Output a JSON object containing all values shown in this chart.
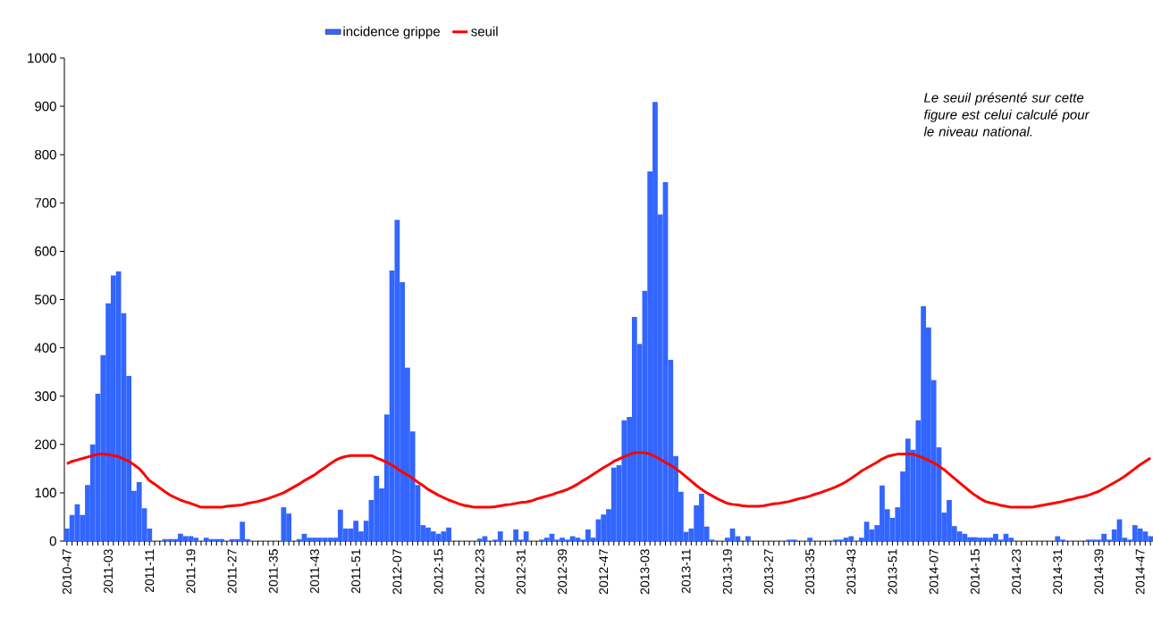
{
  "chart_data": {
    "type": "bar",
    "categories": [
      "2010-47",
      null,
      null,
      null,
      null,
      null,
      null,
      null,
      "2011-03",
      null,
      null,
      null,
      null,
      null,
      null,
      null,
      "2011-11",
      null,
      null,
      null,
      null,
      null,
      null,
      null,
      "2011-19",
      null,
      null,
      null,
      null,
      null,
      null,
      null,
      "2011-27",
      null,
      null,
      null,
      null,
      null,
      null,
      null,
      "2011-35",
      null,
      null,
      null,
      null,
      null,
      null,
      null,
      "2011-43",
      null,
      null,
      null,
      null,
      null,
      null,
      null,
      "2011-51",
      null,
      null,
      null,
      null,
      null,
      null,
      null,
      "2012-07",
      null,
      null,
      null,
      null,
      null,
      null,
      null,
      "2012-15",
      null,
      null,
      null,
      null,
      null,
      null,
      null,
      "2012-23",
      null,
      null,
      null,
      null,
      null,
      null,
      null,
      "2012-31",
      null,
      null,
      null,
      null,
      null,
      null,
      null,
      "2012-39",
      null,
      null,
      null,
      null,
      null,
      null,
      null,
      "2012-47",
      null,
      null,
      null,
      null,
      null,
      null,
      null,
      "2013-03",
      null,
      null,
      null,
      null,
      null,
      null,
      null,
      "2013-11",
      null,
      null,
      null,
      null,
      null,
      null,
      null,
      "2013-19",
      null,
      null,
      null,
      null,
      null,
      null,
      null,
      "2013-27",
      null,
      null,
      null,
      null,
      null,
      null,
      null,
      "2013-35",
      null,
      null,
      null,
      null,
      null,
      null,
      null,
      "2013-43",
      null,
      null,
      null,
      null,
      null,
      null,
      null,
      "2013-51",
      null,
      null,
      null,
      null,
      null,
      null,
      null,
      "2014-07",
      null,
      null,
      null,
      null,
      null,
      null,
      null,
      "2014-15",
      null,
      null,
      null,
      null,
      null,
      null,
      null,
      "2014-23",
      null,
      null,
      null,
      null,
      null,
      null,
      null,
      "2014-31",
      null,
      null,
      null,
      null,
      null,
      null,
      null,
      "2014-39",
      null,
      null,
      null,
      null,
      null,
      null,
      null,
      "2014-47",
      null,
      null
    ],
    "series": [
      {
        "name": "incidence grippe",
        "color": "#3366ff",
        "values": [
          26,
          54,
          76,
          54,
          116,
          200,
          305,
          385,
          492,
          550,
          558,
          472,
          342,
          104,
          122,
          68,
          26,
          0,
          0,
          4,
          4,
          4,
          15,
          10,
          10,
          7,
          0,
          7,
          4,
          4,
          4,
          0,
          4,
          4,
          40,
          4,
          0,
          0,
          0,
          0,
          0,
          0,
          70,
          57,
          0,
          4,
          15,
          7,
          7,
          7,
          7,
          7,
          7,
          65,
          26,
          26,
          42,
          20,
          42,
          85,
          135,
          109,
          262,
          560,
          665,
          536,
          359,
          227,
          116,
          33,
          28,
          20,
          15,
          20,
          28,
          0,
          0,
          0,
          0,
          0,
          5,
          10,
          0,
          3,
          20,
          0,
          0,
          24,
          3,
          20,
          0,
          0,
          3,
          7,
          15,
          3,
          7,
          3,
          10,
          7,
          3,
          24,
          7,
          45,
          55,
          66,
          152,
          157,
          250,
          257,
          464,
          408,
          518,
          765,
          909,
          676,
          743,
          375,
          176,
          102,
          19,
          26,
          74,
          98,
          30,
          3,
          0,
          0,
          7,
          26,
          10,
          0,
          10,
          0,
          0,
          0,
          0,
          0,
          0,
          0,
          3,
          3,
          0,
          0,
          7,
          0,
          0,
          0,
          0,
          3,
          3,
          7,
          10,
          0,
          7,
          40,
          24,
          33,
          115,
          66,
          48,
          70,
          144,
          212,
          189,
          250,
          486,
          442,
          333,
          194,
          59,
          85,
          31,
          20,
          15,
          8,
          8,
          7,
          7,
          7,
          15,
          3,
          15,
          7,
          0,
          0,
          0,
          0,
          0,
          0,
          0,
          0,
          10,
          3,
          0,
          0,
          0,
          0,
          3,
          3,
          3,
          15,
          3,
          24,
          45,
          7,
          3,
          33,
          26,
          20,
          10
        ]
      },
      {
        "name": "seuil",
        "type": "line",
        "color": "#ff0000",
        "values": [
          160,
          165,
          168,
          171,
          174,
          177,
          180,
          180,
          179,
          177,
          175,
          170,
          165,
          158,
          150,
          138,
          125,
          118,
          110,
          102,
          95,
          90,
          85,
          81,
          78,
          74,
          70,
          70,
          70,
          70,
          70,
          72,
          73,
          74,
          75,
          78,
          80,
          82,
          85,
          88,
          92,
          96,
          100,
          106,
          112,
          118,
          125,
          131,
          137,
          145,
          152,
          160,
          167,
          172,
          175,
          177,
          177,
          177,
          177,
          177,
          172,
          168,
          163,
          157,
          150,
          143,
          137,
          130,
          122,
          115,
          107,
          101,
          95,
          90,
          85,
          81,
          77,
          74,
          72,
          70,
          70,
          70,
          70,
          71,
          73,
          75,
          76,
          78,
          80,
          81,
          83,
          87,
          90,
          93,
          96,
          100,
          103,
          107,
          112,
          118,
          125,
          131,
          138,
          145,
          152,
          158,
          165,
          170,
          175,
          179,
          183,
          183,
          183,
          180,
          175,
          169,
          163,
          157,
          150,
          142,
          133,
          124,
          115,
          107,
          100,
          94,
          88,
          83,
          78,
          76,
          75,
          73,
          72,
          72,
          72,
          73,
          75,
          77,
          78,
          80,
          82,
          85,
          88,
          90,
          93,
          97,
          100,
          104,
          108,
          112,
          117,
          123,
          130,
          137,
          145,
          151,
          157,
          163,
          170,
          175,
          178,
          180,
          180,
          180,
          180,
          176,
          172,
          167,
          162,
          155,
          148,
          139,
          130,
          121,
          112,
          103,
          95,
          88,
          82,
          79,
          77,
          74,
          72,
          70,
          70,
          70,
          70,
          70,
          72,
          74,
          76,
          78,
          80,
          82,
          85,
          87,
          90,
          92,
          95,
          99,
          103,
          109,
          115,
          121,
          127,
          134,
          142,
          150,
          158,
          165,
          172
        ]
      }
    ],
    "ylim": [
      0,
      1000
    ],
    "yticks": [
      0,
      100,
      200,
      300,
      400,
      500,
      600,
      700,
      800,
      900,
      1000
    ],
    "legend": "top",
    "annotations": [
      "Le seuil présenté sur cette figure est celui calculé pour le niveau national."
    ]
  }
}
